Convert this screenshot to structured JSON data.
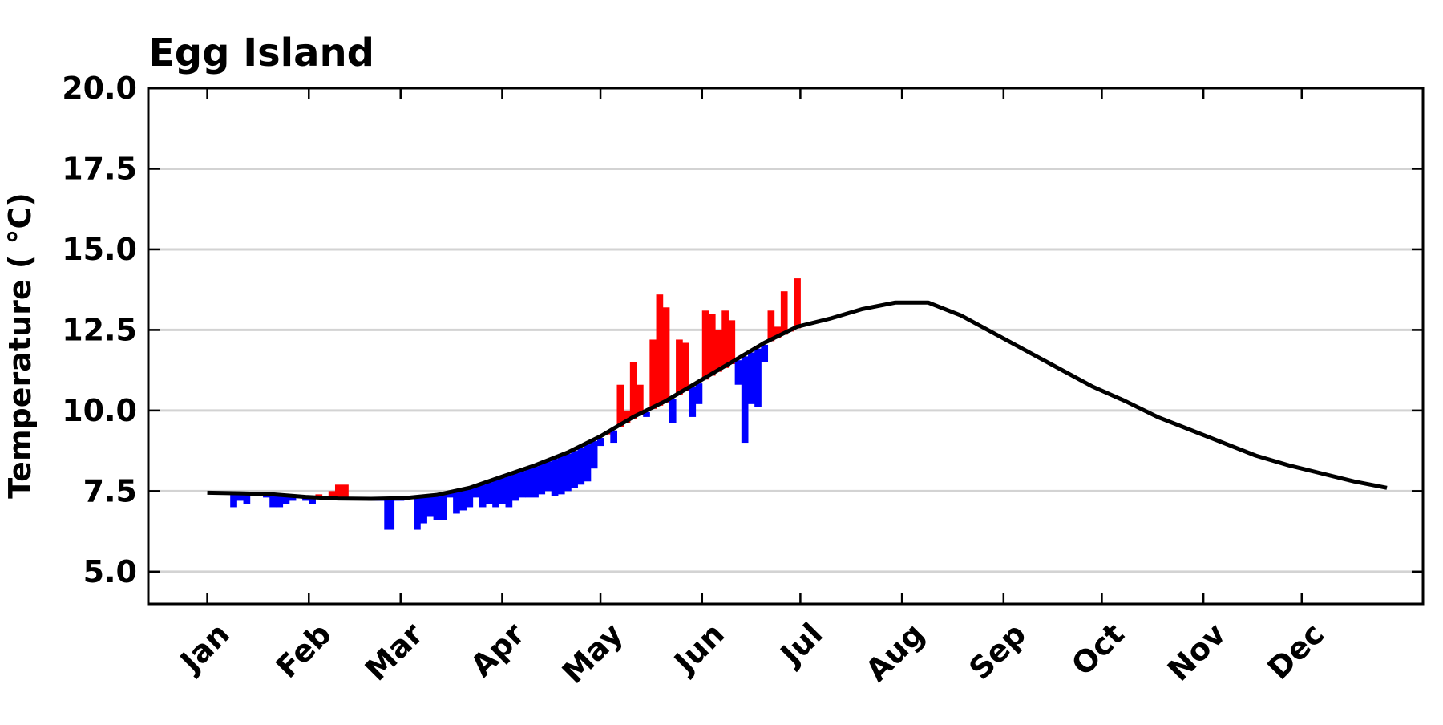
{
  "chart_data": {
    "type": "anomaly",
    "title": "Egg Island",
    "y_label": "Temperature ( °C)",
    "xlim": [
      -17,
      372
    ],
    "ylim": [
      4,
      20
    ],
    "xticks": [
      {
        "value": 1,
        "label": "Jan"
      },
      {
        "value": 32,
        "label": "Feb"
      },
      {
        "value": 60,
        "label": "Mar"
      },
      {
        "value": 91,
        "label": "Apr"
      },
      {
        "value": 121,
        "label": "May"
      },
      {
        "value": 152,
        "label": "Jun"
      },
      {
        "value": 182,
        "label": "Jul"
      },
      {
        "value": 213,
        "label": "Aug"
      },
      {
        "value": 244,
        "label": "Sep"
      },
      {
        "value": 274,
        "label": "Oct"
      },
      {
        "value": 305,
        "label": "Nov"
      },
      {
        "value": 335,
        "label": "Dec"
      }
    ],
    "yticks": [
      {
        "value": 5,
        "label": "5.0"
      },
      {
        "value": 7.5,
        "label": "7.5"
      },
      {
        "value": 10,
        "label": "10.0"
      },
      {
        "value": 12.5,
        "label": "12.5"
      },
      {
        "value": 15,
        "label": "15.0"
      },
      {
        "value": 17.5,
        "label": "17.5"
      },
      {
        "value": 20,
        "label": "20.0"
      }
    ],
    "grid": true,
    "above_color": "#ff0000",
    "below_color": "#0000ff",
    "line_color": "#000000",
    "climatology": {
      "x": [
        1,
        11,
        21,
        31,
        41,
        51,
        61,
        71,
        81,
        91,
        101,
        111,
        121,
        131,
        141,
        151,
        161,
        171,
        181,
        191,
        201,
        211,
        221,
        231,
        241,
        251,
        261,
        271,
        281,
        291,
        301,
        311,
        321,
        331,
        341,
        351,
        361
      ],
      "values": [
        7.45,
        7.43,
        7.4,
        7.32,
        7.27,
        7.26,
        7.28,
        7.38,
        7.6,
        7.95,
        8.3,
        8.7,
        9.2,
        9.8,
        10.3,
        10.9,
        11.5,
        12.1,
        12.6,
        12.85,
        13.15,
        13.35,
        13.35,
        12.95,
        12.4,
        11.85,
        11.3,
        10.75,
        10.3,
        9.8,
        9.4,
        9.0,
        8.6,
        8.3,
        8.05,
        7.8,
        7.6
      ]
    },
    "observed": {
      "x": [
        8,
        10,
        12,
        14,
        16,
        18,
        20,
        22,
        24,
        26,
        28,
        30,
        32,
        34,
        36,
        38,
        40,
        42,
        44,
        46,
        48,
        50,
        52,
        55,
        58,
        61,
        64,
        66,
        68,
        70,
        72,
        74,
        76,
        78,
        80,
        82,
        84,
        86,
        88,
        90,
        92,
        94,
        96,
        98,
        100,
        102,
        104,
        106,
        108,
        110,
        112,
        114,
        116,
        118,
        120,
        122,
        124,
        126,
        128,
        130,
        132,
        134,
        136,
        138,
        140,
        142,
        144,
        146,
        148,
        150,
        152,
        154,
        156,
        158,
        160,
        162,
        164,
        166,
        168,
        170,
        172,
        174,
        176,
        178,
        180
      ],
      "values": [
        7.0,
        7.2,
        7.1,
        7.4,
        7.4,
        7.3,
        7.0,
        7.0,
        7.1,
        7.2,
        7.3,
        7.2,
        7.1,
        7.4,
        7.35,
        7.5,
        7.7,
        7.7,
        7.25,
        7.25,
        7.25,
        7.2,
        7.2,
        6.3,
        7.2,
        7.25,
        6.3,
        6.5,
        6.7,
        6.6,
        6.6,
        7.3,
        6.8,
        6.9,
        7.0,
        7.3,
        7.0,
        7.1,
        7.0,
        7.1,
        7.0,
        7.2,
        7.3,
        7.3,
        7.3,
        7.4,
        7.5,
        7.35,
        7.4,
        7.5,
        7.6,
        7.7,
        7.8,
        8.2,
        8.9,
        9.3,
        9.0,
        10.8,
        10.0,
        11.5,
        10.8,
        9.8,
        12.2,
        13.6,
        13.2,
        9.6,
        12.2,
        12.1,
        9.8,
        10.2,
        13.1,
        13.0,
        12.5,
        13.1,
        12.8,
        10.8,
        9.0,
        10.2,
        10.1,
        11.5,
        13.1,
        12.6,
        13.7,
        12.5,
        14.1
      ]
    }
  }
}
